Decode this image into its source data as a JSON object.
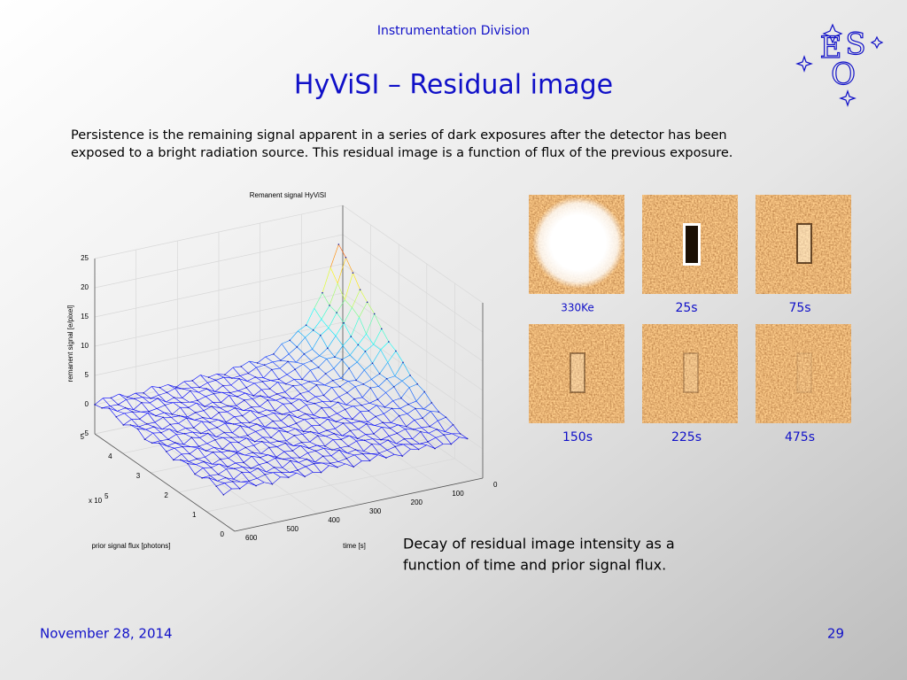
{
  "header": {
    "division": "Instrumentation Division",
    "title": "HyViSI – Residual image",
    "logo_letters": [
      "E",
      "S",
      "O"
    ]
  },
  "intro": [
    "Persistence is the remaining signal apparent in a series of dark exposures after the detector has been",
    "exposed to a bright radiation source. This residual image is a function of flux of the previous exposure."
  ],
  "figure": {
    "title": "Remanent signal HyViSI",
    "zlabel": "remanent signal [e/pixel]",
    "ylabel": "prior signal flux [photons]",
    "xlabel": "time [s]",
    "multiplier": "x 10",
    "multiplier_exp": "5",
    "zticks": [
      25,
      20,
      15,
      10,
      5,
      0,
      -5
    ],
    "fluxticks": [
      5,
      4,
      3,
      2,
      1,
      0
    ],
    "timeticks": [
      600,
      500,
      400,
      300,
      200,
      100,
      0
    ]
  },
  "images": [
    {
      "label": "330Ke"
    },
    {
      "label": "25s"
    },
    {
      "label": "75s"
    },
    {
      "label": "150s"
    },
    {
      "label": "225s"
    },
    {
      "label": "475s"
    }
  ],
  "caption": [
    "Decay of residual image intensity as a",
    "function of time and prior signal flux."
  ],
  "footer": {
    "date": "November 28, 2014",
    "page": "29"
  }
}
